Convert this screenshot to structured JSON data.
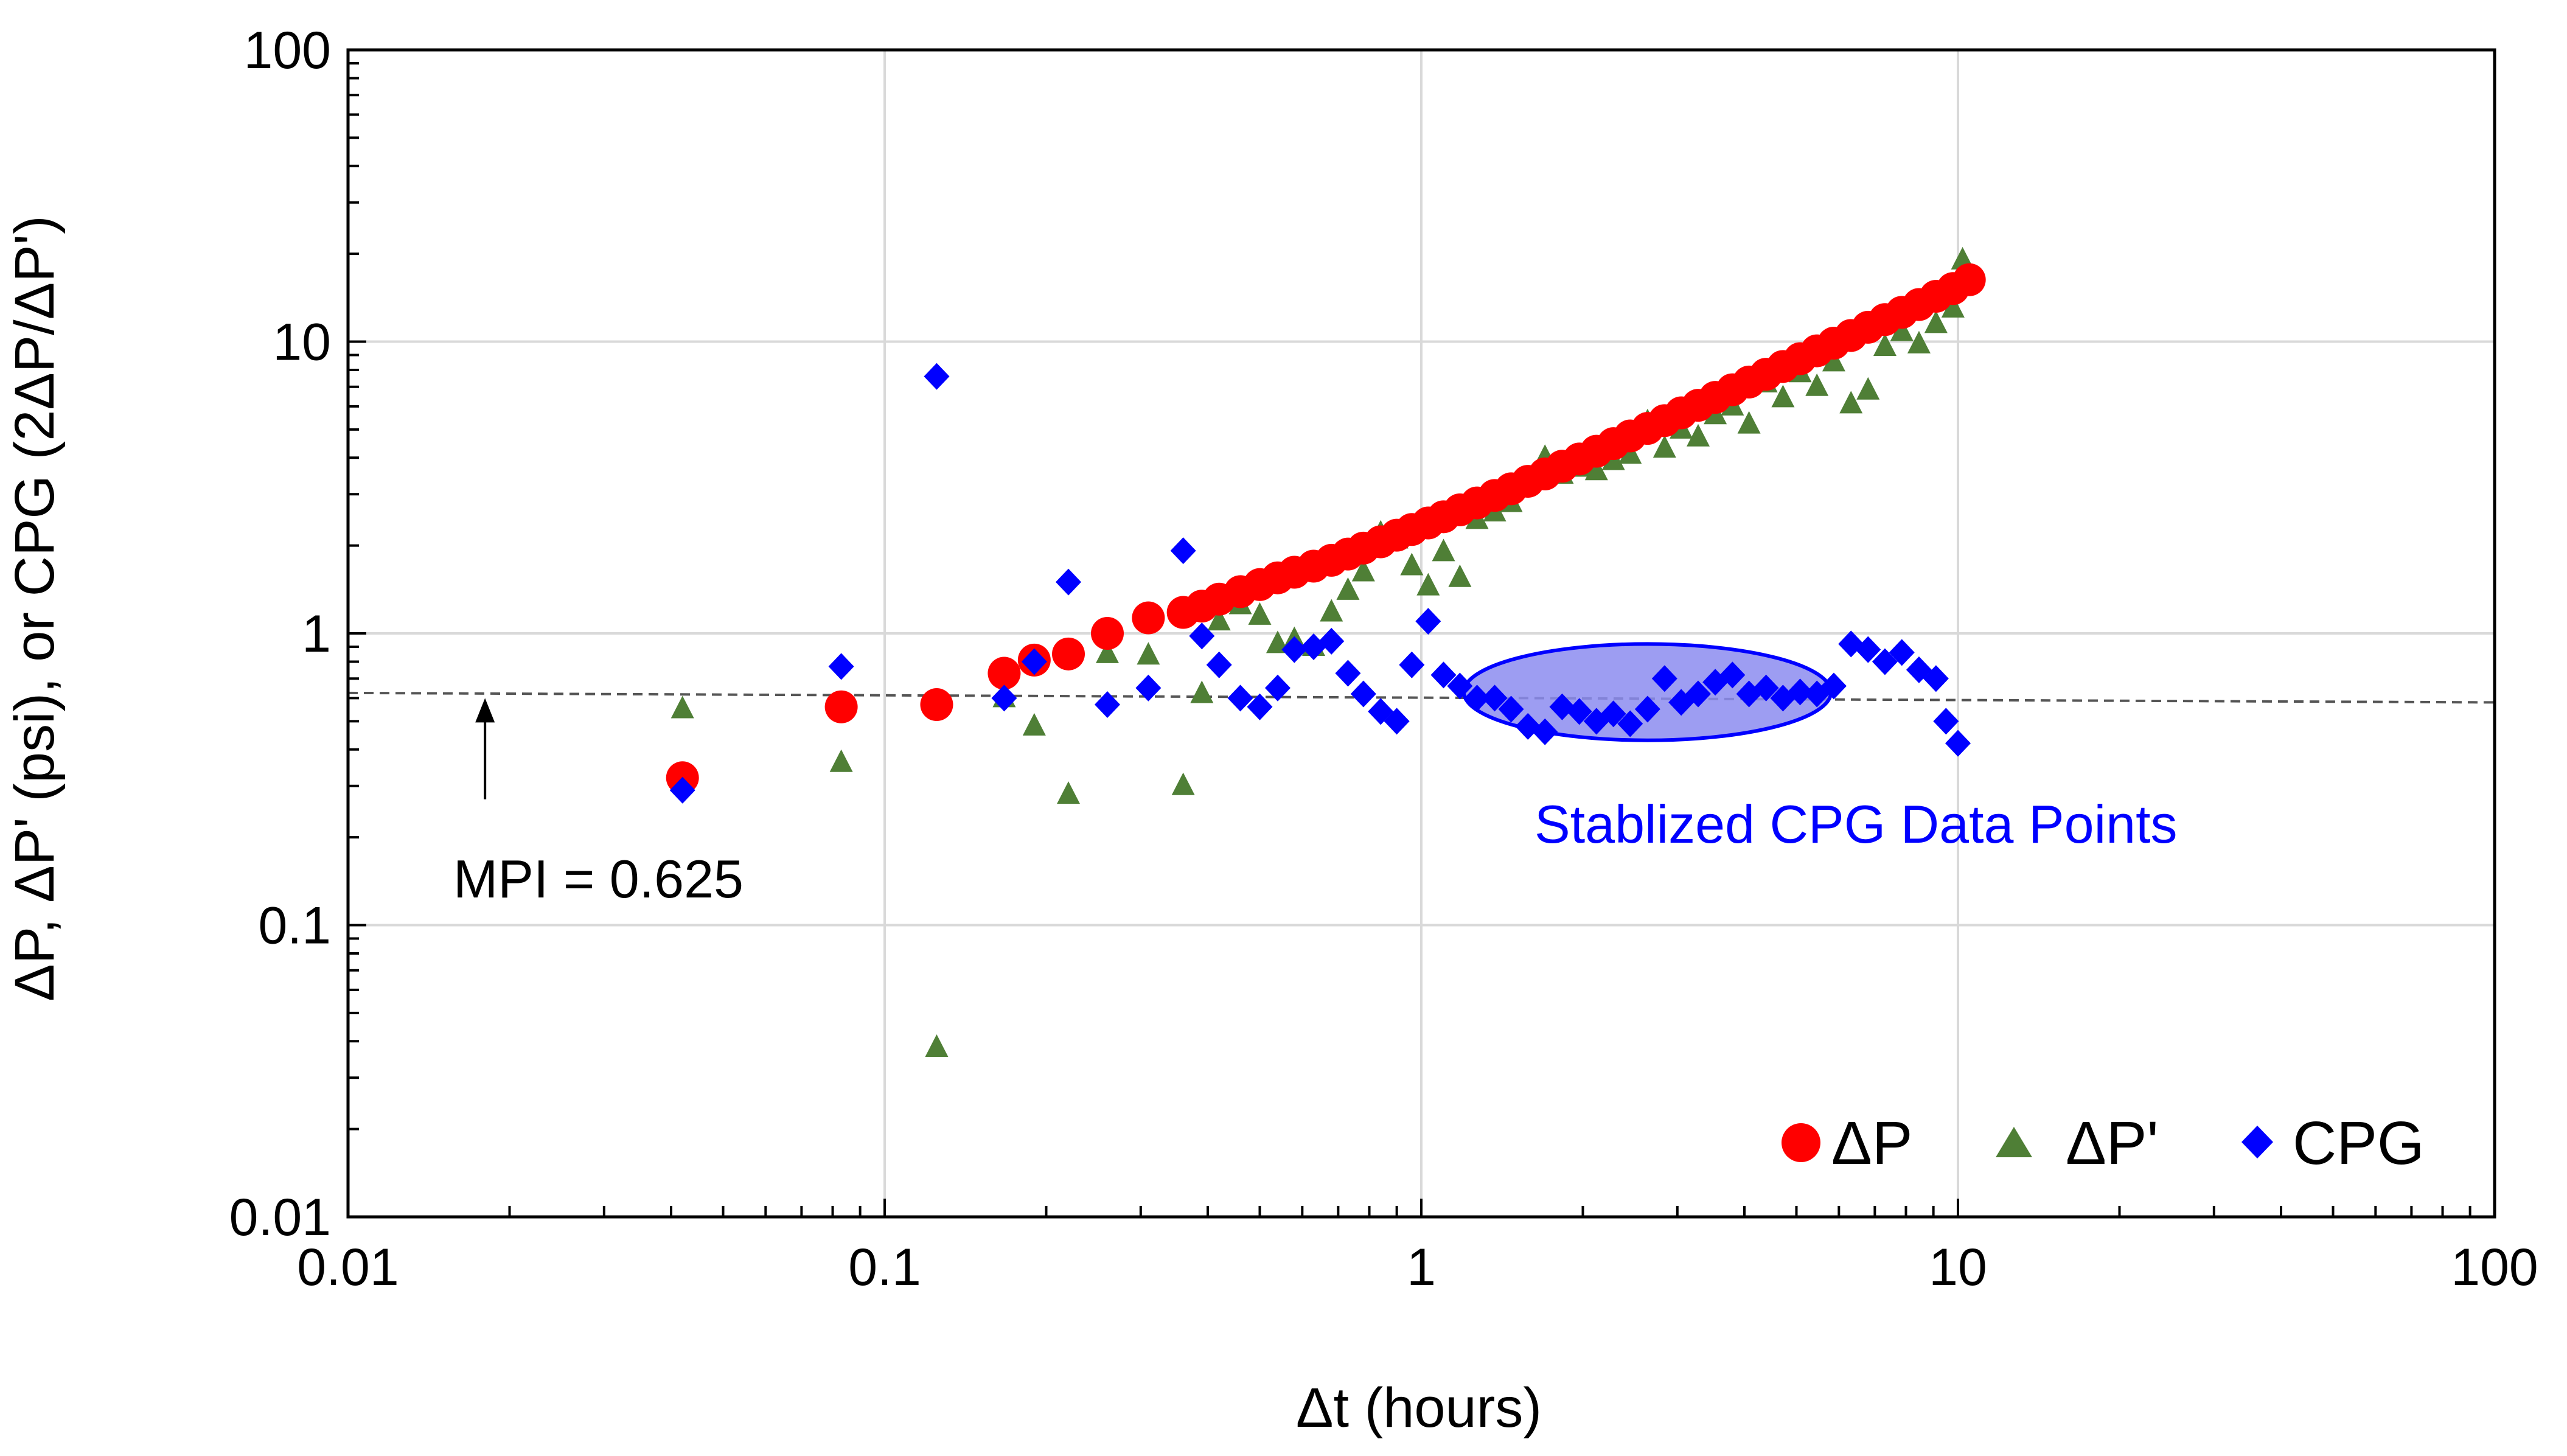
{
  "chart_data": {
    "type": "scatter",
    "xscale": "log",
    "yscale": "log",
    "xlabel": "Δt (hours)",
    "ylabel": "ΔP, ΔP' (psi), or CPG (2ΔP/ΔP')",
    "xlim": [
      0.01,
      100
    ],
    "ylim": [
      0.01,
      100
    ],
    "x_ticks": [
      0.01,
      0.1,
      1,
      10,
      100
    ],
    "x_tick_labels": [
      "0.01",
      "0.1",
      "1",
      "10",
      "100"
    ],
    "y_ticks": [
      0.01,
      0.1,
      1,
      10,
      100
    ],
    "y_tick_labels": [
      "0.01",
      "0.1",
      "1",
      "10",
      "100"
    ],
    "grid": true,
    "legend_position": "bottom-right",
    "colors": {
      "dp": "#ff0000",
      "dpd": "#4f7f36",
      "cpg": "#0000ff",
      "mpi_line": "#555555",
      "ellipse_fill": "#8c8cf0",
      "ellipse_stroke": "#0000ff",
      "annotation_text": "#0000ff"
    },
    "series": [
      {
        "name": "ΔP",
        "marker": "circle",
        "points": [
          [
            0.042,
            0.32
          ],
          [
            0.083,
            0.56
          ],
          [
            0.125,
            0.57
          ],
          [
            0.167,
            0.73
          ],
          [
            0.19,
            0.81
          ],
          [
            0.22,
            0.85
          ],
          [
            0.26,
            1.0
          ],
          [
            0.31,
            1.13
          ],
          [
            0.36,
            1.18
          ],
          [
            0.39,
            1.24
          ],
          [
            0.42,
            1.31
          ],
          [
            0.46,
            1.39
          ],
          [
            0.5,
            1.47
          ],
          [
            0.54,
            1.55
          ],
          [
            0.58,
            1.62
          ],
          [
            0.63,
            1.7
          ],
          [
            0.68,
            1.78
          ],
          [
            0.73,
            1.87
          ],
          [
            0.78,
            1.96
          ],
          [
            0.84,
            2.06
          ],
          [
            0.9,
            2.17
          ],
          [
            0.96,
            2.27
          ],
          [
            1.03,
            2.39
          ],
          [
            1.1,
            2.51
          ],
          [
            1.18,
            2.65
          ],
          [
            1.27,
            2.8
          ],
          [
            1.37,
            2.97
          ],
          [
            1.47,
            3.13
          ],
          [
            1.58,
            3.32
          ],
          [
            1.7,
            3.52
          ],
          [
            1.83,
            3.74
          ],
          [
            1.97,
            3.96
          ],
          [
            2.12,
            4.21
          ],
          [
            2.28,
            4.47
          ],
          [
            2.45,
            4.75
          ],
          [
            2.64,
            5.04
          ],
          [
            2.84,
            5.36
          ],
          [
            3.05,
            5.7
          ],
          [
            3.28,
            6.05
          ],
          [
            3.53,
            6.44
          ],
          [
            3.8,
            6.84
          ],
          [
            4.08,
            7.27
          ],
          [
            4.39,
            7.73
          ],
          [
            4.72,
            8.22
          ],
          [
            5.08,
            8.74
          ],
          [
            5.46,
            9.3
          ],
          [
            5.87,
            9.88
          ],
          [
            6.32,
            10.5
          ],
          [
            6.8,
            11.2
          ],
          [
            7.31,
            11.9
          ],
          [
            7.86,
            12.6
          ],
          [
            8.46,
            13.4
          ],
          [
            9.1,
            14.3
          ],
          [
            9.79,
            15.2
          ],
          [
            10.5,
            16.3
          ]
        ]
      },
      {
        "name": "ΔP'",
        "marker": "triangle",
        "points": [
          [
            0.042,
            0.55
          ],
          [
            0.083,
            0.36
          ],
          [
            0.125,
            0.038
          ],
          [
            0.167,
            0.6
          ],
          [
            0.19,
            0.48
          ],
          [
            0.22,
            0.28
          ],
          [
            0.26,
            0.85
          ],
          [
            0.31,
            0.84
          ],
          [
            0.36,
            0.3
          ],
          [
            0.39,
            0.62
          ],
          [
            0.42,
            1.1
          ],
          [
            0.46,
            1.25
          ],
          [
            0.5,
            1.15
          ],
          [
            0.54,
            0.92
          ],
          [
            0.58,
            0.95
          ],
          [
            0.63,
            0.9
          ],
          [
            0.68,
            1.18
          ],
          [
            0.73,
            1.4
          ],
          [
            0.78,
            1.62
          ],
          [
            0.84,
            2.2
          ],
          [
            0.9,
            2.1
          ],
          [
            0.96,
            1.7
          ],
          [
            1.03,
            1.45
          ],
          [
            1.1,
            1.9
          ],
          [
            1.18,
            1.55
          ],
          [
            1.27,
            2.45
          ],
          [
            1.37,
            2.6
          ],
          [
            1.47,
            2.8
          ],
          [
            1.58,
            3.4
          ],
          [
            1.7,
            4.0
          ],
          [
            1.83,
            3.5
          ],
          [
            1.97,
            3.7
          ],
          [
            2.12,
            3.6
          ],
          [
            2.28,
            3.9
          ],
          [
            2.45,
            4.1
          ],
          [
            2.64,
            5.3
          ],
          [
            2.84,
            4.3
          ],
          [
            3.05,
            5.0
          ],
          [
            3.28,
            4.7
          ],
          [
            3.53,
            5.6
          ],
          [
            3.8,
            6.0
          ],
          [
            4.08,
            5.2
          ],
          [
            4.39,
            7.2
          ],
          [
            4.72,
            6.4
          ],
          [
            5.08,
            7.8
          ],
          [
            5.46,
            7.0
          ],
          [
            5.87,
            8.5
          ],
          [
            6.32,
            6.1
          ],
          [
            6.8,
            6.8
          ],
          [
            7.31,
            9.6
          ],
          [
            7.86,
            10.8
          ],
          [
            8.46,
            9.8
          ],
          [
            9.1,
            11.5
          ],
          [
            9.79,
            13.0
          ],
          [
            10.2,
            19.0
          ]
        ]
      },
      {
        "name": "CPG",
        "marker": "diamond",
        "points": [
          [
            0.042,
            0.29
          ],
          [
            0.083,
            0.77
          ],
          [
            0.125,
            7.6
          ],
          [
            0.167,
            0.6
          ],
          [
            0.19,
            0.8
          ],
          [
            0.22,
            1.5
          ],
          [
            0.26,
            0.57
          ],
          [
            0.31,
            0.65
          ],
          [
            0.36,
            1.92
          ],
          [
            0.39,
            0.98
          ],
          [
            0.42,
            0.78
          ],
          [
            0.46,
            0.6
          ],
          [
            0.5,
            0.56
          ],
          [
            0.54,
            0.65
          ],
          [
            0.58,
            0.88
          ],
          [
            0.63,
            0.9
          ],
          [
            0.68,
            0.94
          ],
          [
            0.73,
            0.73
          ],
          [
            0.78,
            0.62
          ],
          [
            0.84,
            0.54
          ],
          [
            0.9,
            0.5
          ],
          [
            0.96,
            0.78
          ],
          [
            1.03,
            1.1
          ],
          [
            1.1,
            0.72
          ],
          [
            1.18,
            0.66
          ],
          [
            1.27,
            0.6
          ],
          [
            1.37,
            0.6
          ],
          [
            1.47,
            0.55
          ],
          [
            1.58,
            0.48
          ],
          [
            1.7,
            0.46
          ],
          [
            1.83,
            0.56
          ],
          [
            1.97,
            0.54
          ],
          [
            2.12,
            0.5
          ],
          [
            2.28,
            0.53
          ],
          [
            2.45,
            0.49
          ],
          [
            2.64,
            0.55
          ],
          [
            2.84,
            0.7
          ],
          [
            3.05,
            0.58
          ],
          [
            3.28,
            0.62
          ],
          [
            3.53,
            0.68
          ],
          [
            3.8,
            0.72
          ],
          [
            4.08,
            0.62
          ],
          [
            4.39,
            0.65
          ],
          [
            4.72,
            0.6
          ],
          [
            5.08,
            0.63
          ],
          [
            5.46,
            0.62
          ],
          [
            5.87,
            0.66
          ],
          [
            6.32,
            0.92
          ],
          [
            6.8,
            0.88
          ],
          [
            7.31,
            0.8
          ],
          [
            7.86,
            0.86
          ],
          [
            8.46,
            0.75
          ],
          [
            9.1,
            0.7
          ],
          [
            9.5,
            0.5
          ],
          [
            10.0,
            0.42
          ]
        ]
      }
    ],
    "mpi_line": {
      "from": [
        0.01,
        0.625
      ],
      "to": [
        100,
        0.58
      ]
    },
    "annotations": [
      {
        "id": "mpi",
        "text": "MPI = 0.625",
        "arrow_from": [
          0.018,
          0.27
        ],
        "arrow_to": [
          0.018,
          0.6
        ]
      },
      {
        "id": "stabilized",
        "text": "Stablized CPG Data Points",
        "ellipse_x_range": [
          1.2,
          5.8
        ],
        "ellipse_y_range": [
          0.43,
          0.92
        ]
      }
    ],
    "legend": [
      "ΔP",
      "ΔP'",
      "CPG"
    ]
  }
}
